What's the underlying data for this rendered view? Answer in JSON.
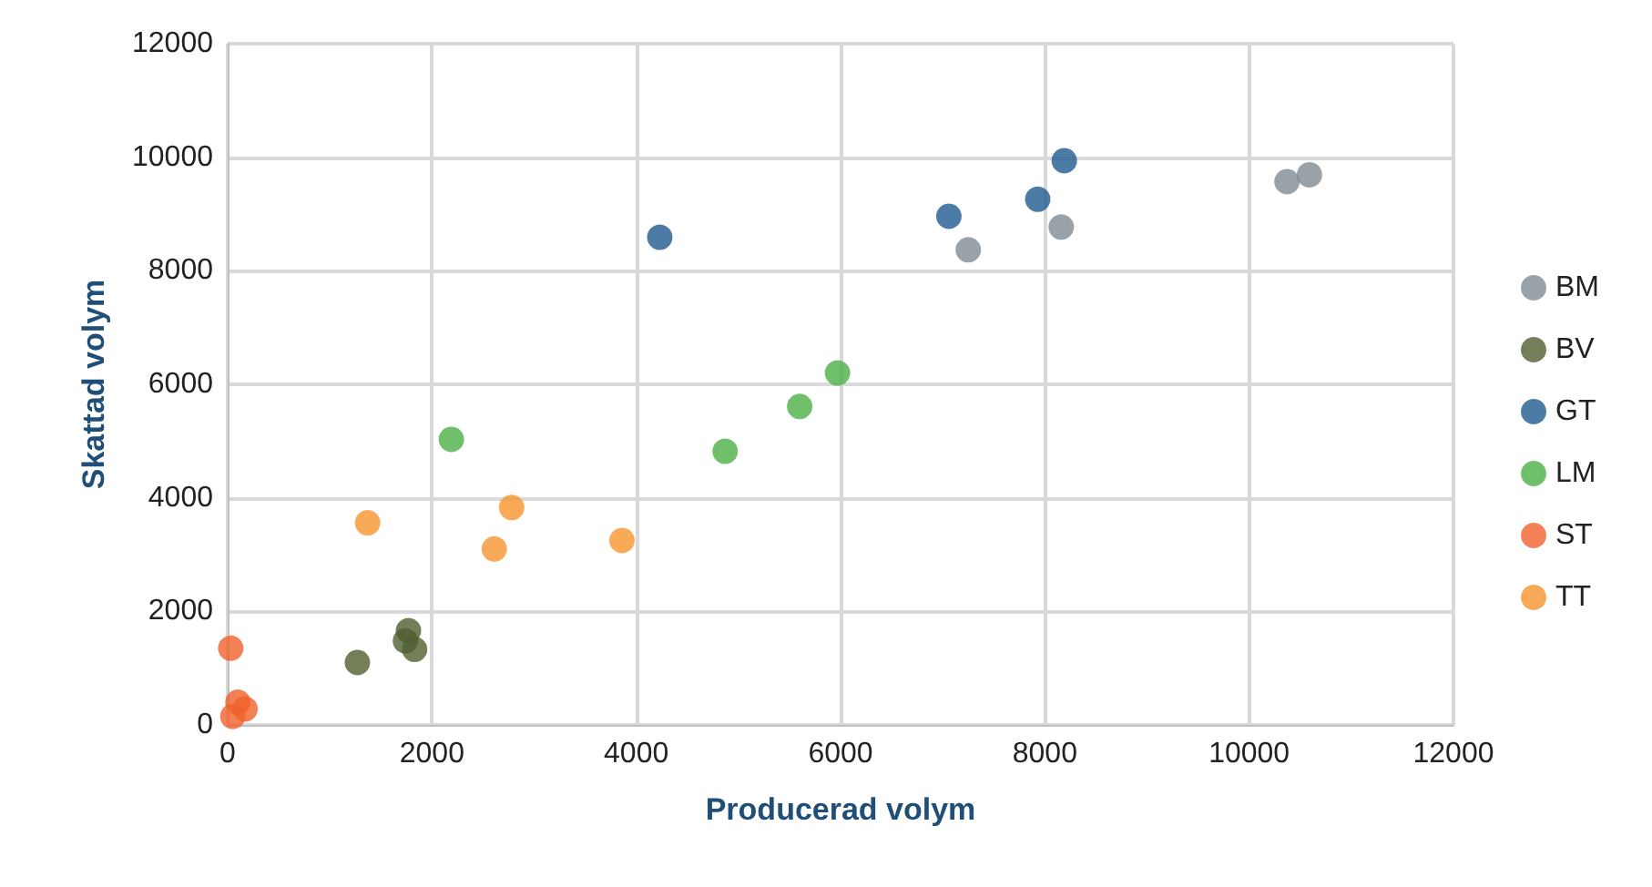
{
  "chart_data": {
    "type": "scatter",
    "xlabel": "Producerad volym",
    "ylabel": "Skattad volym",
    "xlim": [
      0,
      12000
    ],
    "ylim": [
      0,
      12000
    ],
    "xticks": [
      0,
      2000,
      4000,
      6000,
      8000,
      10000,
      12000
    ],
    "yticks": [
      0,
      2000,
      4000,
      6000,
      8000,
      10000,
      12000
    ],
    "grid": true,
    "legend": "right",
    "marker": "circle",
    "series": [
      {
        "name": "BM",
        "color": "#7f8a93",
        "x": [
          7250,
          8160,
          10370,
          10590
        ],
        "values": [
          8370,
          8770,
          9570,
          9690
        ]
      },
      {
        "name": "BV",
        "color": "#4f5f2f",
        "x": [
          1270,
          1770,
          1740,
          1830
        ],
        "values": [
          1100,
          1660,
          1480,
          1330
        ]
      },
      {
        "name": "GT",
        "color": "#1f5a8e",
        "x": [
          4230,
          7060,
          7930,
          8190
        ],
        "values": [
          8590,
          8960,
          9260,
          9940
        ]
      },
      {
        "name": "LM",
        "color": "#4caf45",
        "x": [
          2190,
          4870,
          5600,
          5970
        ],
        "values": [
          5030,
          4820,
          5610,
          6200
        ]
      },
      {
        "name": "ST",
        "color": "#f0622a",
        "x": [
          30,
          100,
          170,
          50
        ],
        "values": [
          1350,
          400,
          280,
          150
        ]
      },
      {
        "name": "TT",
        "color": "#f7952e",
        "x": [
          1370,
          2610,
          2780,
          3860
        ],
        "values": [
          3560,
          3100,
          3830,
          3250
        ]
      }
    ]
  }
}
